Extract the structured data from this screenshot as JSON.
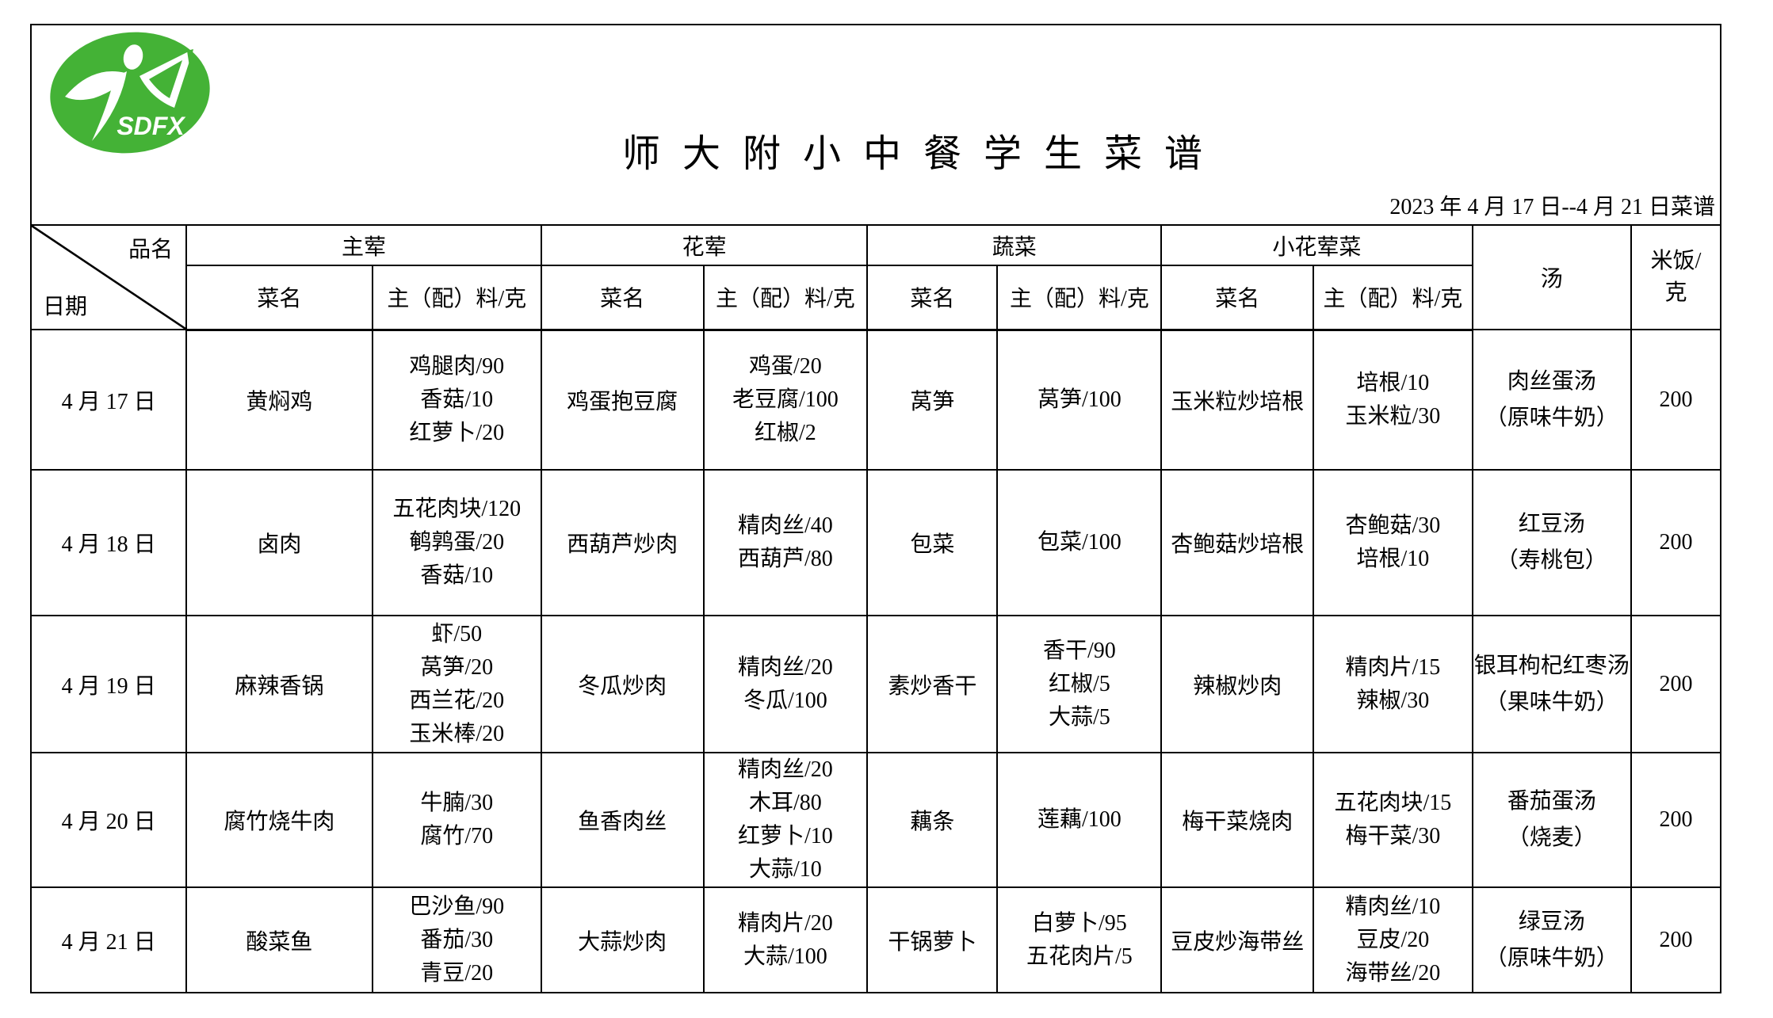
{
  "page": {
    "logo": {
      "text": "SDFX",
      "color": "#44b236"
    },
    "title": "师 大 附 小 中 餐 学 生 菜 谱",
    "date_line": "2023 年 4 月 17 日--4 月 21 日菜谱"
  },
  "table": {
    "corner_top": "品名",
    "corner_bottom": "日期",
    "groups": [
      "主荤",
      "花荤",
      "蔬菜",
      "小花荤菜"
    ],
    "sub_dish": "菜名",
    "sub_ingredients": "主（配）料/克",
    "soup_header": "汤",
    "rice_header": [
      "米饭/",
      "克"
    ],
    "rows": [
      {
        "date": "4 月 17 日",
        "main_meat": {
          "dish": "黄焖鸡",
          "ingredients": [
            "鸡腿肉/90",
            "香菇/10",
            "红萝卜/20"
          ]
        },
        "semi_meat": {
          "dish": "鸡蛋抱豆腐",
          "ingredients": [
            "鸡蛋/20",
            "老豆腐/100",
            "红椒/2"
          ]
        },
        "vegetable": {
          "dish": "莴笋",
          "ingredients": [
            "莴笋/100"
          ]
        },
        "small_dish": {
          "dish": "玉米粒炒培根",
          "ingredients": [
            "培根/10",
            "玉米粒/30"
          ]
        },
        "soup": [
          "肉丝蛋汤",
          "（原味牛奶）"
        ],
        "rice": "200"
      },
      {
        "date": "4 月 18 日",
        "main_meat": {
          "dish": "卤肉",
          "ingredients": [
            "五花肉块/120",
            "鹌鹑蛋/20",
            "香菇/10"
          ]
        },
        "semi_meat": {
          "dish": "西葫芦炒肉",
          "ingredients": [
            "精肉丝/40",
            "西葫芦/80"
          ]
        },
        "vegetable": {
          "dish": "包菜",
          "ingredients": [
            "包菜/100"
          ]
        },
        "small_dish": {
          "dish": "杏鲍菇炒培根",
          "ingredients": [
            "杏鲍菇/30",
            "培根/10"
          ]
        },
        "soup": [
          "红豆汤",
          "（寿桃包）"
        ],
        "rice": "200"
      },
      {
        "date": "4 月 19 日",
        "main_meat": {
          "dish": "麻辣香锅",
          "ingredients": [
            "虾/50",
            "莴笋/20",
            "西兰花/20",
            "玉米棒/20"
          ]
        },
        "semi_meat": {
          "dish": "冬瓜炒肉",
          "ingredients": [
            "精肉丝/20",
            "冬瓜/100"
          ]
        },
        "vegetable": {
          "dish": "素炒香干",
          "ingredients": [
            "香干/90",
            "红椒/5",
            "大蒜/5"
          ]
        },
        "small_dish": {
          "dish": "辣椒炒肉",
          "ingredients": [
            "精肉片/15",
            "辣椒/30"
          ]
        },
        "soup": [
          "银耳枸杞红枣汤",
          "（果味牛奶）"
        ],
        "rice": "200"
      },
      {
        "date": "4 月 20 日",
        "main_meat": {
          "dish": "腐竹烧牛肉",
          "ingredients": [
            "牛腩/30",
            "腐竹/70"
          ]
        },
        "semi_meat": {
          "dish": "鱼香肉丝",
          "ingredients": [
            "精肉丝/20",
            "木耳/80",
            "红萝卜/10",
            "大蒜/10"
          ]
        },
        "vegetable": {
          "dish": "藕条",
          "ingredients": [
            "莲藕/100"
          ]
        },
        "small_dish": {
          "dish": "梅干菜烧肉",
          "ingredients": [
            "五花肉块/15",
            "梅干菜/30"
          ]
        },
        "soup": [
          "番茄蛋汤",
          "（烧麦）"
        ],
        "rice": "200"
      },
      {
        "date": "4 月 21 日",
        "main_meat": {
          "dish": "酸菜鱼",
          "ingredients": [
            "巴沙鱼/90",
            "番茄/30",
            "青豆/20"
          ]
        },
        "semi_meat": {
          "dish": "大蒜炒肉",
          "ingredients": [
            "精肉片/20",
            "大蒜/100"
          ]
        },
        "vegetable": {
          "dish": "干锅萝卜",
          "ingredients": [
            "白萝卜/95",
            "五花肉片/5"
          ]
        },
        "small_dish": {
          "dish": "豆皮炒海带丝",
          "ingredients": [
            "精肉丝/10",
            "豆皮/20",
            "海带丝/20"
          ]
        },
        "soup": [
          "绿豆汤",
          "（原味牛奶）"
        ],
        "rice": "200"
      }
    ]
  }
}
